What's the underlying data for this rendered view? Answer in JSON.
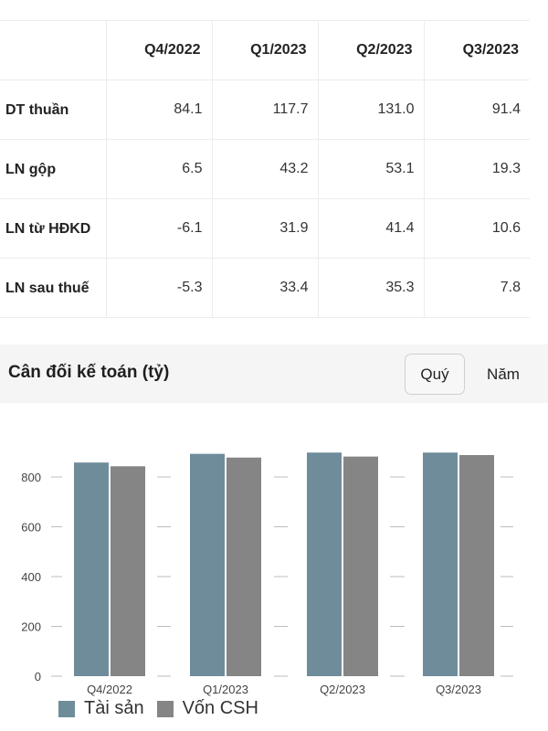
{
  "table": {
    "headers": [
      "",
      "Q4/2022",
      "Q1/2023",
      "Q2/2023",
      "Q3/2023"
    ],
    "rows": [
      {
        "label": "DT thuần",
        "values": [
          "84.1",
          "117.7",
          "131.0",
          "91.4"
        ]
      },
      {
        "label": "LN gộp",
        "values": [
          "6.5",
          "43.2",
          "53.1",
          "19.3"
        ]
      },
      {
        "label": "LN từ HĐKD",
        "values": [
          "-6.1",
          "31.9",
          "41.4",
          "10.6"
        ]
      },
      {
        "label": "LN sau thuế",
        "values": [
          "-5.3",
          "33.4",
          "35.3",
          "7.8"
        ]
      }
    ]
  },
  "balance_sheet": {
    "title": "Cân đối kế toán (tỷ)",
    "period_buttons": {
      "quarter": "Quý",
      "year": "Năm"
    }
  },
  "colors": {
    "assets": "#6f8c9b",
    "equity": "#858585",
    "grid": "#bdbdbd"
  },
  "chart_data": {
    "type": "bar",
    "categories": [
      "Q4/2022",
      "Q1/2023",
      "Q2/2023",
      "Q3/2023"
    ],
    "series": [
      {
        "name": "Tài sản",
        "values": [
          858,
          893,
          898,
          898
        ]
      },
      {
        "name": "Vốn CSH",
        "values": [
          843,
          878,
          882,
          888
        ]
      }
    ],
    "yticks": [
      0,
      200,
      400,
      600,
      800
    ],
    "ylim": [
      0,
      950
    ],
    "legend": "bottom-left",
    "grid": true
  }
}
